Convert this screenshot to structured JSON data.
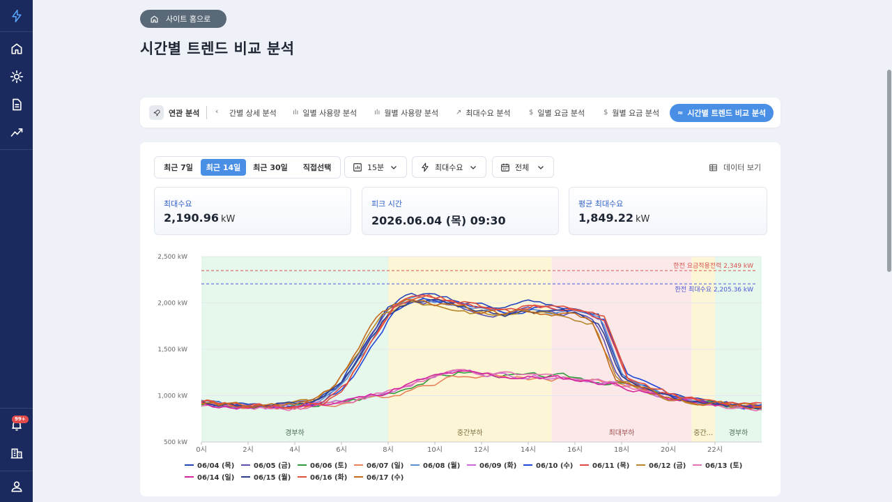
{
  "home_pill": {
    "label": "사이트 홈으로"
  },
  "page": {
    "title": "시간별 트렌드 비교 분석"
  },
  "sidebar": {
    "badge": "99+",
    "items": [
      "lightning-icon",
      "home-icon",
      "sun-icon",
      "document-icon",
      "trend-icon",
      "bell-icon",
      "building-icon",
      "user-icon"
    ]
  },
  "tabsbar": {
    "label": "연관 분석",
    "prev": "‹",
    "tabs": [
      {
        "icon": "‹",
        "label": "간별 상세 분석"
      },
      {
        "icon": "ılı",
        "label": "일별 사용량 분석"
      },
      {
        "icon": "ılı",
        "label": "월별 사용량 분석"
      },
      {
        "icon": "↗",
        "label": "최대수요 분석"
      },
      {
        "icon": "$",
        "label": "일별 요금 분석"
      },
      {
        "icon": "$",
        "label": "월별 요금 분석"
      },
      {
        "icon": "≈",
        "label": "시간별 트렌드 비교 분석",
        "active": true
      }
    ]
  },
  "controls": {
    "ranges": [
      "최근 7일",
      "최근 14일",
      "최근 30일",
      "직접선택"
    ],
    "active_range": "최근 14일",
    "interval": "15분",
    "metric": "최대수요",
    "day_filter": "전체",
    "data_view": "데이터 보기"
  },
  "kpis": [
    {
      "label": "최대수요",
      "value": "2,190.96",
      "unit": "kW"
    },
    {
      "label": "피크 시간",
      "value": "2026.06.04 (목) 09:30",
      "unit": ""
    },
    {
      "label": "평균 최대수요",
      "value": "1,849.22",
      "unit": "kW"
    }
  ],
  "chart_data": {
    "type": "line",
    "y_ticks": [
      "2,500 kW",
      "2,000 kW",
      "1,500 kW",
      "1,000 kW",
      "500 kW"
    ],
    "ylim": [
      500,
      2500
    ],
    "x_ticks": [
      "0시",
      "2시",
      "4시",
      "6시",
      "8시",
      "10시",
      "12시",
      "14시",
      "16시",
      "18시",
      "20시",
      "22시"
    ],
    "xlim": [
      0,
      24
    ],
    "bands": [
      {
        "from": 0,
        "to": 8,
        "label": "경부하",
        "color": "#e6f7ec"
      },
      {
        "from": 8,
        "to": 15,
        "label": "중간부하",
        "color": "#fcf6d6"
      },
      {
        "from": 15,
        "to": 21,
        "label": "최대부하",
        "color": "#fbe9ea"
      },
      {
        "from": 21,
        "to": 22,
        "label": "중간...",
        "color": "#fcf6d6"
      },
      {
        "from": 22,
        "to": 24,
        "label": "경부하",
        "color": "#e6f7ec"
      }
    ],
    "ref_lines": [
      {
        "value": 2349,
        "label": "한전 요금적용전력 2,349 kW",
        "color": "#d9534f"
      },
      {
        "value": 2205.36,
        "label": "한전 최대수요 2,205.36 kW",
        "color": "#4a55d8"
      }
    ],
    "x": [
      0,
      1,
      2,
      3,
      4,
      5,
      6,
      7,
      8,
      9,
      10,
      11,
      12,
      13,
      14,
      15,
      16,
      17,
      18,
      19,
      20,
      21,
      22,
      23,
      24
    ],
    "weekday_profile": [
      930,
      905,
      890,
      880,
      900,
      940,
      1120,
      1520,
      1900,
      2030,
      2010,
      1960,
      1920,
      1880,
      1940,
      1900,
      1890,
      1800,
      1180,
      1080,
      1000,
      940,
      910,
      890,
      880
    ],
    "weekend_profile": [
      910,
      890,
      870,
      865,
      880,
      905,
      940,
      980,
      1040,
      1130,
      1200,
      1250,
      1230,
      1210,
      1200,
      1200,
      1180,
      1150,
      1120,
      1040,
      980,
      930,
      900,
      880,
      870
    ],
    "series": [
      {
        "name": "06/04 (목)",
        "color": "#2343b8",
        "kind": "weekday",
        "shift": 0.0,
        "scale": 1.06,
        "seed": 1
      },
      {
        "name": "06/05 (금)",
        "color": "#5a4fb0",
        "kind": "weekday",
        "shift": -0.1,
        "scale": 1.0,
        "seed": 2
      },
      {
        "name": "06/06 (토)",
        "color": "#2e9a3e",
        "kind": "weekend",
        "shift": 0.2,
        "scale": 1.02,
        "seed": 3
      },
      {
        "name": "06/07 (일)",
        "color": "#e8825a",
        "kind": "weekend",
        "shift": 0.5,
        "scale": 0.96,
        "seed": 4
      },
      {
        "name": "06/08 (월)",
        "color": "#5b8fd1",
        "kind": "weekday",
        "shift": 0.15,
        "scale": 1.01,
        "seed": 5
      },
      {
        "name": "06/09 (화)",
        "color": "#cc6bd9",
        "kind": "weekend",
        "shift": 0.0,
        "scale": 1.05,
        "seed": 6
      },
      {
        "name": "06/10 (수)",
        "color": "#1f45d8",
        "kind": "weekday",
        "shift": 0.3,
        "scale": 1.02,
        "seed": 7
      },
      {
        "name": "06/11 (목)",
        "color": "#e04848",
        "kind": "weekday",
        "shift": 0.2,
        "scale": 1.03,
        "seed": 8
      },
      {
        "name": "06/12 (금)",
        "color": "#b8862b",
        "kind": "weekday",
        "shift": -0.2,
        "scale": 0.98,
        "seed": 9
      },
      {
        "name": "06/13 (토)",
        "color": "#e472b4",
        "kind": "weekend",
        "shift": 0.1,
        "scale": 1.03,
        "seed": 10
      },
      {
        "name": "06/14 (일)",
        "color": "#d6259c",
        "kind": "weekend",
        "shift": -0.1,
        "scale": 0.99,
        "seed": 11
      },
      {
        "name": "06/15 (월)",
        "color": "#2b3f8e",
        "kind": "weekday",
        "shift": 0.05,
        "scale": 1.0,
        "seed": 12
      },
      {
        "name": "06/16 (화)",
        "color": "#e0503a",
        "kind": "weekday",
        "shift": 0.25,
        "scale": 1.04,
        "seed": 13
      },
      {
        "name": "06/17 (수)",
        "color": "#c46a1a",
        "kind": "weekday",
        "shift": -0.3,
        "scale": 1.0,
        "seed": 14
      }
    ]
  }
}
